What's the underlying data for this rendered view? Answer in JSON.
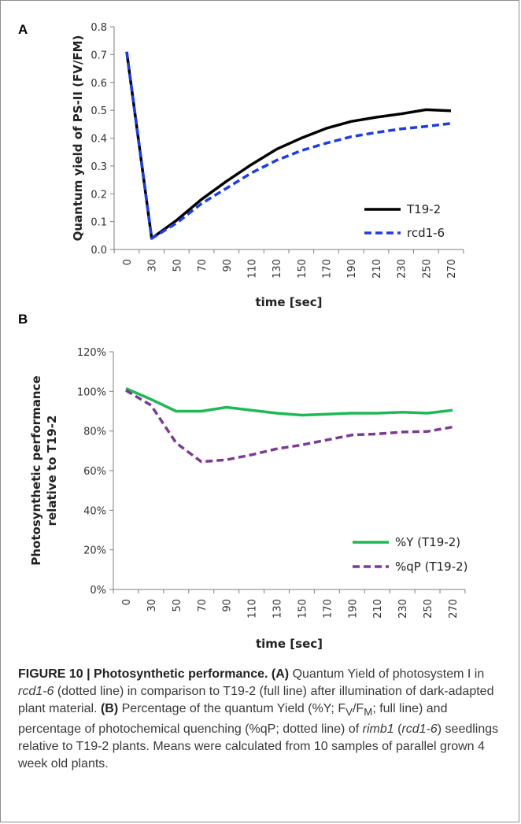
{
  "chart_data": [
    {
      "panel": "A",
      "type": "line",
      "ylabel": "Quantum yield of PS-II (FV/FM)",
      "xlabel": "time [sec]",
      "x": [
        0,
        30,
        50,
        70,
        90,
        110,
        130,
        150,
        170,
        190,
        210,
        230,
        250,
        270
      ],
      "ylim": [
        0,
        0.8
      ],
      "yticks": [
        "0.0",
        "0.1",
        "0.2",
        "0.3",
        "0.4",
        "0.5",
        "0.6",
        "0.7",
        "0.8"
      ],
      "xticks": [
        "0",
        "30",
        "50",
        "70",
        "90",
        "110",
        "130",
        "150",
        "170",
        "190",
        "210",
        "230",
        "250",
        "270"
      ],
      "legend_position": "bottom-right",
      "grid": false,
      "series": [
        {
          "name": "T19-2",
          "color": "#000000",
          "style": "solid",
          "values": [
            0.71,
            0.04,
            0.105,
            0.18,
            0.245,
            0.305,
            0.36,
            0.4,
            0.435,
            0.46,
            0.475,
            0.487,
            0.502,
            0.498
          ]
        },
        {
          "name": "rcd1-6",
          "color": "#1a3cf0",
          "style": "dashed",
          "values": [
            0.71,
            0.04,
            0.095,
            0.165,
            0.22,
            0.275,
            0.32,
            0.355,
            0.382,
            0.405,
            0.42,
            0.433,
            0.442,
            0.453
          ]
        }
      ]
    },
    {
      "panel": "B",
      "type": "line",
      "ylabel": "Photosynthetic performance relative to T19-2",
      "ylabel_lines": [
        "Photosynthetic performance",
        "relative to T19-2"
      ],
      "xlabel": "time [sec]",
      "x": [
        0,
        30,
        50,
        70,
        90,
        110,
        130,
        150,
        170,
        190,
        210,
        230,
        250,
        270
      ],
      "ylim": [
        0,
        120
      ],
      "yticks": [
        "0%",
        "20%",
        "40%",
        "60%",
        "80%",
        "100%",
        "120%"
      ],
      "xticks": [
        "0",
        "30",
        "50",
        "70",
        "90",
        "110",
        "130",
        "150",
        "170",
        "190",
        "210",
        "230",
        "250",
        "270"
      ],
      "legend_position": "bottom-right",
      "grid": false,
      "series": [
        {
          "name": "%Y (T19-2)",
          "color": "#1db954",
          "style": "solid",
          "values": [
            101.5,
            96,
            90,
            90,
            92,
            90.5,
            89,
            88,
            88.5,
            89,
            89,
            89.5,
            89,
            90.5
          ]
        },
        {
          "name": "%qP (T19-2)",
          "color": "#7b3a96",
          "style": "dashed",
          "values": [
            100.5,
            93,
            74,
            64.5,
            65.5,
            68,
            71,
            73,
            75.5,
            78,
            78.5,
            79.5,
            79.8,
            82
          ]
        }
      ]
    }
  ],
  "panel_labels": {
    "a": "A",
    "b": "B"
  },
  "caption": {
    "label": "FIGURE 10 | Photosynthetic performance.",
    "a_ref": "(A)",
    "a_text_1": "Quantum Yield of photosystem I in",
    "a_ital_1": "rcd1-6",
    "a_text_2": "(dotted line) in comparison to T19-2 (full line) after illumination of dark-adapted plant material.",
    "b_ref": "(B)",
    "b_text_1": "Percentage of the quantum Yield (%Y; F",
    "b_sub_v": "V",
    "b_slash": "/F",
    "b_sub_m": "M",
    "b_text_2": "; full line) and percentage of photochemical quenching (%qP; dotted line) of",
    "b_ital_1": "rimb1",
    "b_paren_open": "(",
    "b_ital_2": "rcd1-6",
    "b_text_3": ") seedlings relative to T19-2 plants. Means were calculated from 10 samples of parallel grown 4 week old plants."
  }
}
